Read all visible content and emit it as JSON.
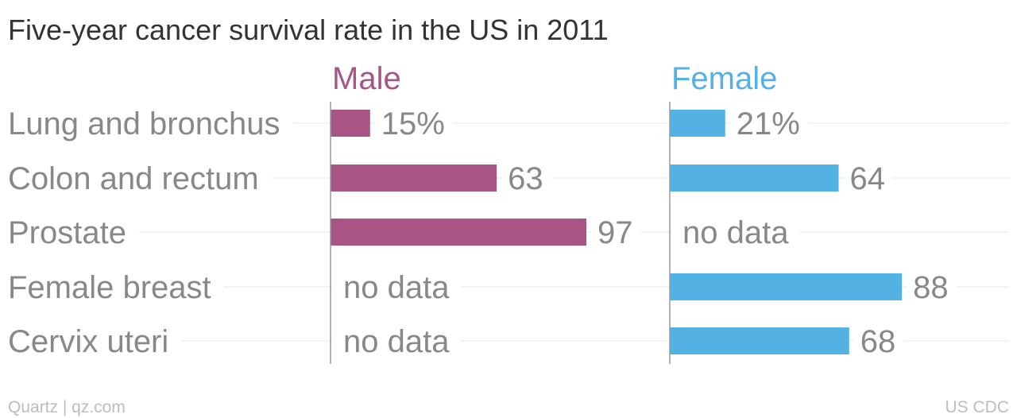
{
  "chart_data": {
    "type": "bar",
    "orientation": "horizontal",
    "title": "Five-year cancer survival rate in the US in 2011",
    "categories": [
      "Lung and bronchus",
      "Colon and rectum",
      "Prostate",
      "Female breast",
      "Cervix uteri"
    ],
    "xlim": [
      0,
      100
    ],
    "unit_suffix_first": "%",
    "missing_label": "no data",
    "grid": false,
    "series": [
      {
        "name": "Male",
        "color": "#a85586",
        "values": [
          15,
          63,
          97,
          null,
          null
        ]
      },
      {
        "name": "Female",
        "color": "#54b1e3",
        "values": [
          21,
          64,
          null,
          88,
          68
        ]
      }
    ]
  },
  "footer": {
    "source_left": "Quartz | qz.com",
    "source_right": "US CDC"
  }
}
